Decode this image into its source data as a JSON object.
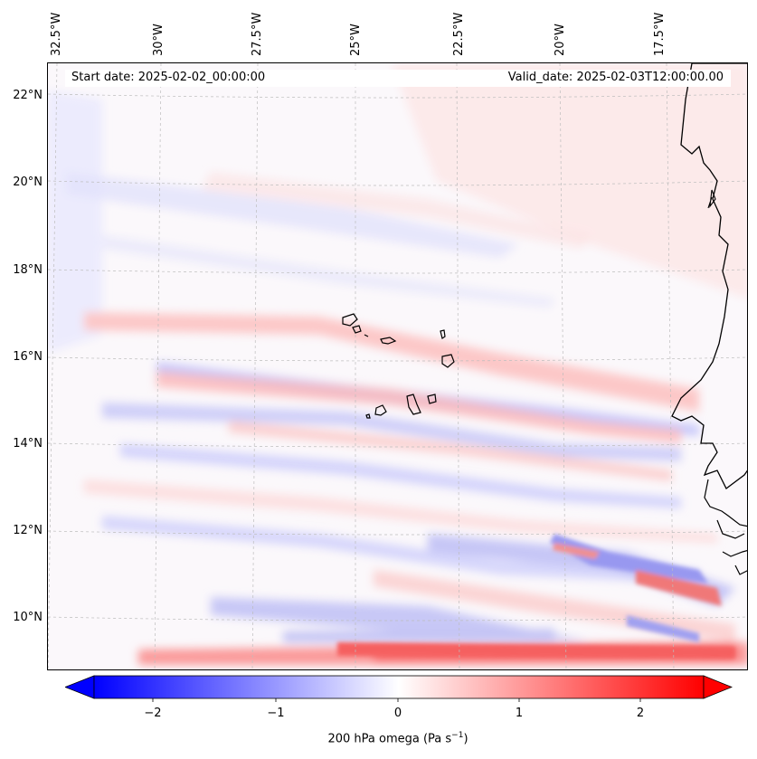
{
  "map": {
    "start_date": "Start date: 2025-02-02_00:00:00",
    "valid_date": "Valid_date: 2025-02-03T12:00:00.00",
    "variable": "200 hPa omega (Pa s",
    "units_suffix": "−1",
    "units_close": ")",
    "longitude_labels": [
      "32.5°W",
      "30°W",
      "27.5°W",
      "25°W",
      "22.5°W",
      "20°W",
      "17.5°W"
    ],
    "latitude_labels": [
      "22°N",
      "20°N",
      "18°N",
      "16°N",
      "14°N",
      "12°N",
      "10°N"
    ],
    "lon_values": [
      -32.5,
      -30,
      -27.5,
      -25,
      -22.5,
      -20,
      -17.5
    ],
    "lat_values": [
      22,
      20,
      18,
      16,
      14,
      12,
      10
    ],
    "colorbar": {
      "min": -2.6,
      "max": 2.6,
      "ticks": [
        -2,
        -1,
        0,
        1,
        2
      ],
      "tick_labels": [
        "−2",
        "−1",
        "0",
        "1",
        "2"
      ],
      "colormap": "bwr",
      "neg_color": "#0000ff",
      "pos_color": "#ff0000",
      "mid_color": "#ffffff"
    },
    "coastline_color": "#000000",
    "gridline_color": "#bbbbbb"
  }
}
